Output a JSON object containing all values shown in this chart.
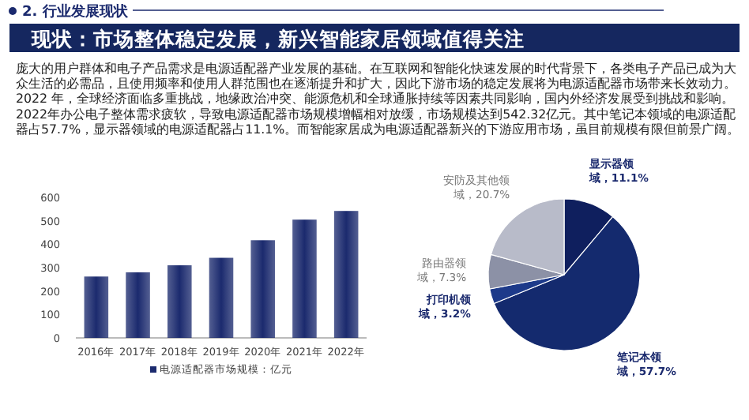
{
  "chart_data": [
    {
      "type": "other",
      "subtitle": "2. 行业发展现状",
      "title": "现状：市场整体稳定发展，新兴智能家居领域值得关注",
      "annotations": [
        "庞大的用户群体和电子产品需求是电源适配器产业发展的基础。在互联网和智能化快速发展的时代背景下，各类电子产品已成为大众生活的必需品，且使用频率和使用人群范围也在逐渐提升和扩大，因此下游市场的稳定发展将为电源适配器市场带来长效动力。",
        "2022 年，全球经济面临多重挑战，地缘政治冲突、能源危机和全球通胀持续等因素共同影响，国内外经济发展受到挑战和影响。2022年办公电子整体需求疲软，导致电源适配器市场规模增幅相对放缓，市场规模达到542.32亿元。其中笔记本领域的电源适配器占57.7%，显示器领域的电源适配器占11.1%。而智能家居成为电源适配器新兴的下游应用市场，虽目前规模有限但前景广阔。"
      ]
    },
    {
      "type": "bar",
      "categories": [
        "2016年",
        "2017年",
        "2018年",
        "2019年",
        "2020年",
        "2021年",
        "2022年"
      ],
      "series": [
        {
          "name": "电源适配器市场规模：亿元",
          "color": "#1b2a6e",
          "values": [
            262,
            280,
            310,
            342,
            417,
            505,
            542
          ]
        }
      ],
      "ylim": [
        0,
        600
      ],
      "yticks": [
        0,
        100,
        200,
        300,
        400,
        500,
        600
      ],
      "grid": false,
      "legend": "bottom"
    },
    {
      "type": "pie",
      "categories": [
        "显示器领域",
        "笔记本领域",
        "打印机领域",
        "路由器领域",
        "安防及其他领域"
      ],
      "values": [
        11.1,
        57.7,
        3.2,
        7.3,
        20.7
      ],
      "colors": [
        "#0f1f5e",
        "#142a6e",
        "#1d3a8a",
        "#8c91a6",
        "#b8bbc9"
      ],
      "value_labels": [
        "11.1%",
        "57.7%",
        "3.2%",
        "7.3%",
        "20.7%"
      ]
    }
  ]
}
